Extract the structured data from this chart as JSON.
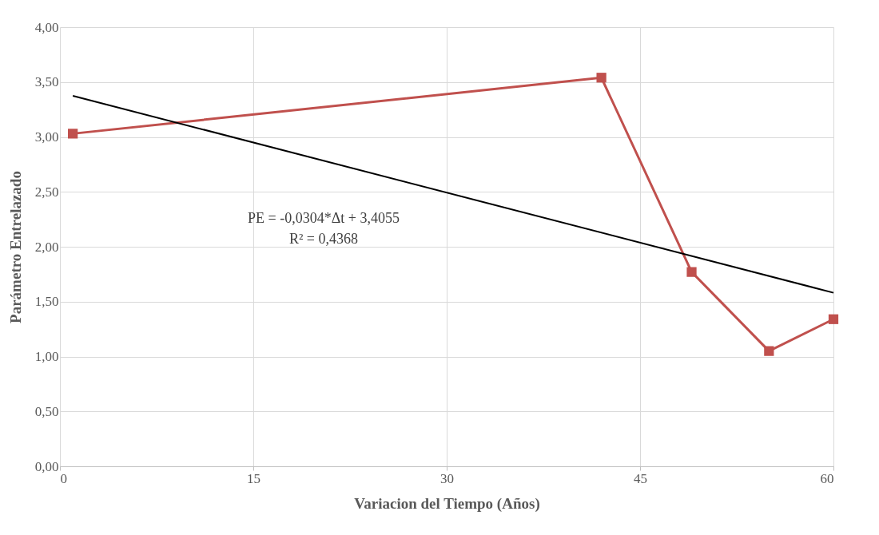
{
  "chart_data": {
    "type": "line",
    "xlabel": "Variacion del Tiempo (Años)",
    "ylabel": "Parámetro Entrelazado",
    "series": [
      {
        "color": "#c0504d",
        "x": [
          1,
          42,
          49,
          55,
          60
        ],
        "values": [
          3.03,
          3.54,
          1.77,
          1.05,
          1.34
        ],
        "marker": "square"
      },
      {
        "color": "#000000",
        "x": [
          1,
          60
        ],
        "values": [
          3.375,
          1.581
        ],
        "marker": "none"
      }
    ],
    "xlim": [
      0,
      60
    ],
    "xticks": [
      0,
      15,
      30,
      45,
      60
    ],
    "ylim": [
      0,
      4
    ],
    "yticks": [
      {
        "value": 0,
        "label": "0,00"
      },
      {
        "value": 0.5,
        "label": "0,50"
      },
      {
        "value": 1,
        "label": "1,00"
      },
      {
        "value": 1.5,
        "label": "1,50"
      },
      {
        "value": 2,
        "label": "2,00"
      },
      {
        "value": 2.5,
        "label": "2,50"
      },
      {
        "value": 3,
        "label": "3,00"
      },
      {
        "value": 3.5,
        "label": "3,50"
      },
      {
        "value": 4,
        "label": "4,00"
      }
    ],
    "grid": true,
    "annotations": [
      "PE = -0,0304*Δt + 3,4055",
      "R² = 0,4368"
    ]
  }
}
